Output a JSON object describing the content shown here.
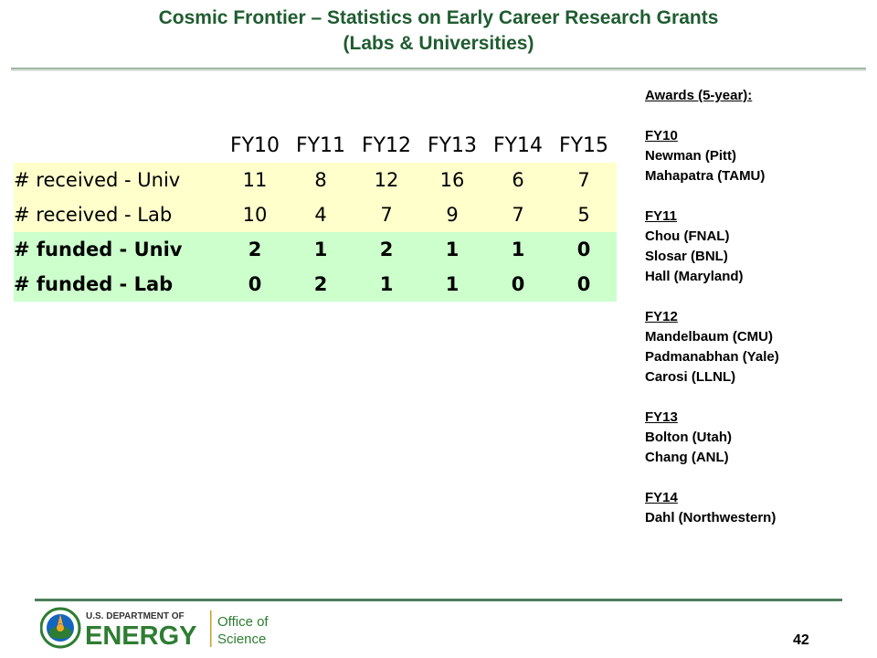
{
  "header": {
    "title_line1": "Cosmic Frontier – Statistics on Early Career Research Grants",
    "title_line2": "(Labs & Universities)"
  },
  "table": {
    "columns": [
      "FY10",
      "FY11",
      "FY12",
      "FY13",
      "FY14",
      "FY15"
    ],
    "rows": [
      {
        "label": "# received - Univ",
        "values": [
          "11",
          "8",
          "12",
          "16",
          "6",
          "7"
        ]
      },
      {
        "label": "# received - Lab",
        "values": [
          "10",
          "4",
          "7",
          "9",
          "7",
          "5"
        ]
      },
      {
        "label": "# funded - Univ",
        "values": [
          "2",
          "1",
          "2",
          "1",
          "1",
          "0"
        ]
      },
      {
        "label": "# funded - Lab",
        "values": [
          "0",
          "2",
          "1",
          "1",
          "0",
          "0"
        ]
      }
    ]
  },
  "awards": {
    "heading": "Awards (5-year):",
    "years": [
      {
        "year": "FY10",
        "names": [
          "Newman (Pitt)",
          "Mahapatra (TAMU)"
        ]
      },
      {
        "year": "FY11",
        "names": [
          "Chou (FNAL)",
          "Slosar (BNL)",
          "Hall (Maryland)"
        ]
      },
      {
        "year": "FY12",
        "names": [
          "Mandelbaum (CMU)",
          "Padmanabhan (Yale)",
          "Carosi (LLNL)"
        ]
      },
      {
        "year": "FY13",
        "names": [
          "Bolton (Utah)",
          "Chang (ANL)"
        ]
      },
      {
        "year": "FY14",
        "names": [
          "Dahl (Northwestern)"
        ]
      }
    ]
  },
  "footer": {
    "logo": {
      "department": "U.S. DEPARTMENT OF",
      "energy": "ENERGY",
      "office_line1": "Office of",
      "office_line2": "Science",
      "seal_icon": "doe-seal-icon"
    },
    "page_number": "42"
  },
  "colors": {
    "title_green": "#1f5c30",
    "received_row_bg": "#ffffcc",
    "funded_row_bg": "#ccffcc",
    "energy_green": "#2e7d32",
    "footer_rule": "#4f7d5b"
  }
}
